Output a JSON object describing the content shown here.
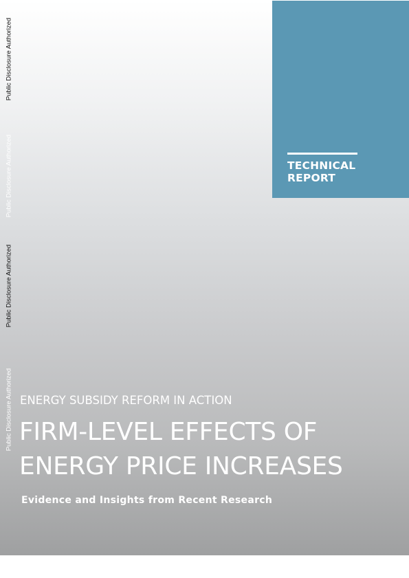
{
  "cover": {
    "report_type": [
      "TECHNICAL",
      "REPORT"
    ],
    "series_title": "ENERGY SUBSIDY REFORM IN ACTION",
    "title_lines": [
      "FIRM-LEVEL EFFECTS OF",
      "ENERGY PRICE INCREASES"
    ],
    "subtitle": "Evidence and Insights from Recent Research"
  },
  "side_stamps": [
    "Public Disclosure Authorized",
    "Public Disclosure Authorized",
    "Public Disclosure Authorized",
    "Public Disclosure Authorized"
  ],
  "colors": {
    "report_box": "#5b98b4",
    "text_on_cover": "#ffffff",
    "stamp_dark": "#111111"
  }
}
